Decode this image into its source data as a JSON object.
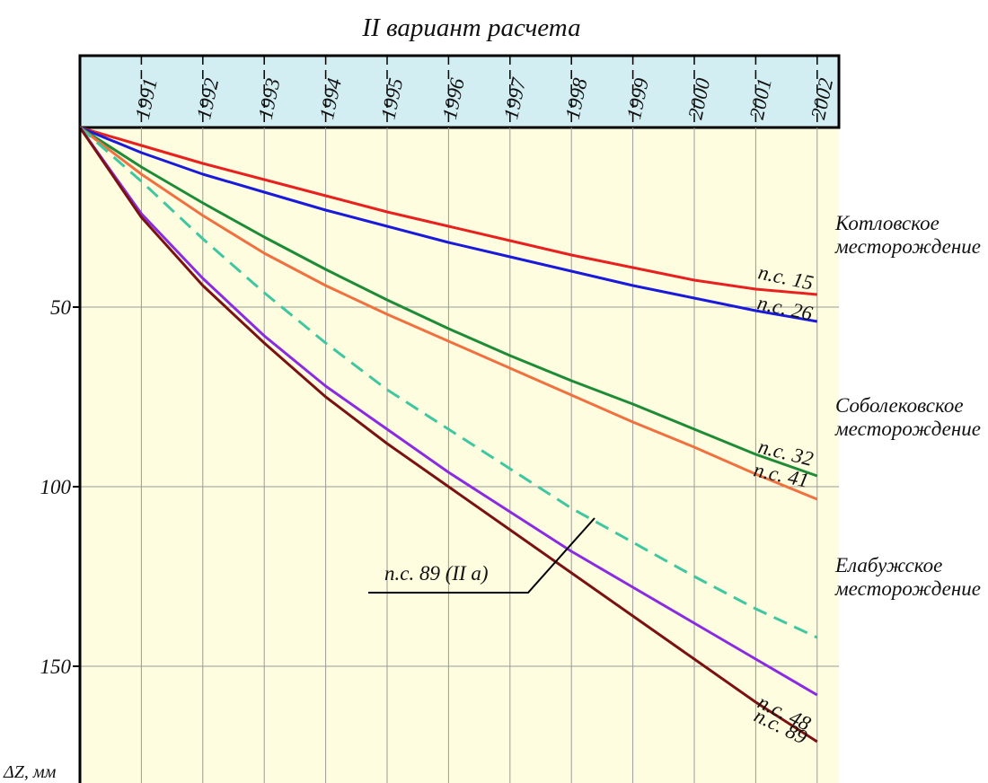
{
  "chart_data": {
    "type": "line",
    "title": "II вариант расчета",
    "x_start": 1990,
    "x_categories": [
      "1991",
      "1992",
      "1993",
      "1994",
      "1995",
      "1996",
      "1997",
      "1998",
      "1999",
      "2000",
      "2001",
      "2002"
    ],
    "ylabel": "ΔZ, мм",
    "y_ticks": [
      "50",
      "100",
      "150"
    ],
    "ylim": [
      0,
      180
    ],
    "y_inverted": true,
    "grid": true,
    "colors": {
      "plot_background": "#fffde0",
      "header_background": "#d2eef2",
      "grid": "#9a9a9a"
    },
    "series": [
      {
        "label": "п.с. 15",
        "color": "#e8211f",
        "style": "solid",
        "points": [
          [
            1990,
            0
          ],
          [
            1991,
            5
          ],
          [
            1992,
            10
          ],
          [
            1993,
            14.5
          ],
          [
            1994,
            19
          ],
          [
            1995,
            23.5
          ],
          [
            1996,
            27.5
          ],
          [
            1997,
            31.5
          ],
          [
            1998,
            35.5
          ],
          [
            1999,
            39
          ],
          [
            2000,
            42.5
          ],
          [
            2001,
            45
          ],
          [
            2002,
            46.5
          ]
        ]
      },
      {
        "label": "п.с. 26",
        "color": "#1a1adb",
        "style": "solid",
        "points": [
          [
            1990,
            0
          ],
          [
            1991,
            7
          ],
          [
            1992,
            13
          ],
          [
            1993,
            18
          ],
          [
            1994,
            23
          ],
          [
            1995,
            27.5
          ],
          [
            1996,
            32
          ],
          [
            1997,
            36
          ],
          [
            1998,
            40
          ],
          [
            1999,
            44
          ],
          [
            2000,
            47.5
          ],
          [
            2001,
            51
          ],
          [
            2002,
            54
          ]
        ]
      },
      {
        "label": "п.с. 32",
        "color": "#1e8c37",
        "style": "solid",
        "points": [
          [
            1990,
            0
          ],
          [
            1991,
            11
          ],
          [
            1992,
            21
          ],
          [
            1993,
            30.5
          ],
          [
            1994,
            39.5
          ],
          [
            1995,
            48
          ],
          [
            1996,
            56
          ],
          [
            1997,
            63.5
          ],
          [
            1998,
            70.5
          ],
          [
            1999,
            77
          ],
          [
            2000,
            84
          ],
          [
            2001,
            91
          ],
          [
            2002,
            97
          ]
        ]
      },
      {
        "label": "п.с. 41",
        "color": "#f0713f",
        "style": "solid",
        "points": [
          [
            1990,
            0
          ],
          [
            1991,
            13
          ],
          [
            1992,
            24.5
          ],
          [
            1993,
            35
          ],
          [
            1994,
            44
          ],
          [
            1995,
            52
          ],
          [
            1996,
            59.5
          ],
          [
            1997,
            67
          ],
          [
            1998,
            74.5
          ],
          [
            1999,
            82
          ],
          [
            2000,
            89
          ],
          [
            2001,
            96.5
          ],
          [
            2002,
            103.5
          ]
        ]
      },
      {
        "label": "п.с. 89 (II а)",
        "color": "#3ec7a0",
        "style": "dashed",
        "points": [
          [
            1990,
            0
          ],
          [
            1991,
            15
          ],
          [
            1992,
            31
          ],
          [
            1993,
            46
          ],
          [
            1994,
            60
          ],
          [
            1995,
            73
          ],
          [
            1996,
            84
          ],
          [
            1997,
            95
          ],
          [
            1998,
            106
          ],
          [
            1999,
            115.5
          ],
          [
            2000,
            125
          ],
          [
            2001,
            134
          ],
          [
            2002,
            142
          ]
        ]
      },
      {
        "label": "п.с. 48",
        "color": "#8a2be2",
        "style": "solid",
        "points": [
          [
            1990,
            0
          ],
          [
            1991,
            24
          ],
          [
            1992,
            42
          ],
          [
            1993,
            58
          ],
          [
            1994,
            72
          ],
          [
            1995,
            84
          ],
          [
            1996,
            96
          ],
          [
            1997,
            107
          ],
          [
            1998,
            118
          ],
          [
            1999,
            128
          ],
          [
            2000,
            138
          ],
          [
            2001,
            148
          ],
          [
            2002,
            158
          ]
        ]
      },
      {
        "label": "п.с. 89",
        "color": "#7a1212",
        "style": "solid",
        "points": [
          [
            1990,
            0
          ],
          [
            1991,
            25
          ],
          [
            1992,
            44
          ],
          [
            1993,
            60
          ],
          [
            1994,
            75
          ],
          [
            1995,
            88
          ],
          [
            1996,
            100
          ],
          [
            1997,
            112
          ],
          [
            1998,
            124
          ],
          [
            1999,
            136
          ],
          [
            2000,
            148
          ],
          [
            2001,
            160
          ],
          [
            2002,
            171
          ]
        ]
      }
    ],
    "deposit_labels": [
      {
        "line1": "Котловское",
        "line2": "месторождение"
      },
      {
        "line1": "Соболековское",
        "line2": "месторождение"
      },
      {
        "line1": "Елабужское",
        "line2": "месторождение"
      }
    ]
  }
}
